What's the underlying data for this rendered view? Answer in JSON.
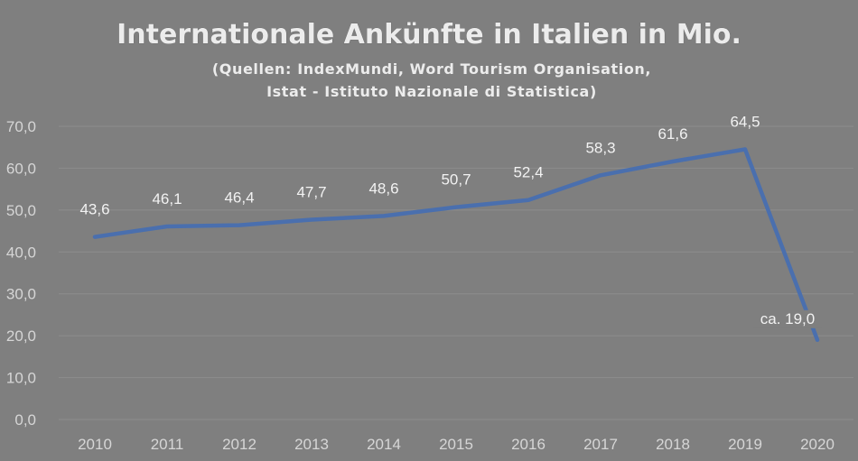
{
  "chart_data": {
    "type": "line",
    "title": "Internationale Ankünfte in Italien in Mio.",
    "subtitle_lines": [
      "(Quellen: IndexMundi, Word Tourism Organisation,",
      "Istat - Istituto Nazionale di Statistica)"
    ],
    "categories": [
      "2010",
      "2011",
      "2012",
      "2013",
      "2014",
      "2015",
      "2016",
      "2017",
      "2018",
      "2019",
      "2020"
    ],
    "series": [
      {
        "values": [
          43.6,
          46.1,
          46.4,
          47.7,
          48.6,
          50.7,
          52.4,
          58.3,
          61.6,
          64.5,
          19.0
        ],
        "labels": [
          "43,6",
          "46,1",
          "46,4",
          "47,7",
          "48,6",
          "50,7",
          "52,4",
          "58,3",
          "61,6",
          "64,5",
          "ca. 19,0"
        ]
      }
    ],
    "ylim": [
      0,
      70
    ],
    "yticks": [
      "0,0",
      "10,0",
      "20,0",
      "30,0",
      "40,0",
      "50,0",
      "60,0",
      "70,0"
    ],
    "grid": true,
    "legend": "none",
    "colors": {
      "background": "#7f7f7f",
      "line": "#4a6fae",
      "grid": "#8d8d8d",
      "text": "#f2f2f2"
    }
  }
}
